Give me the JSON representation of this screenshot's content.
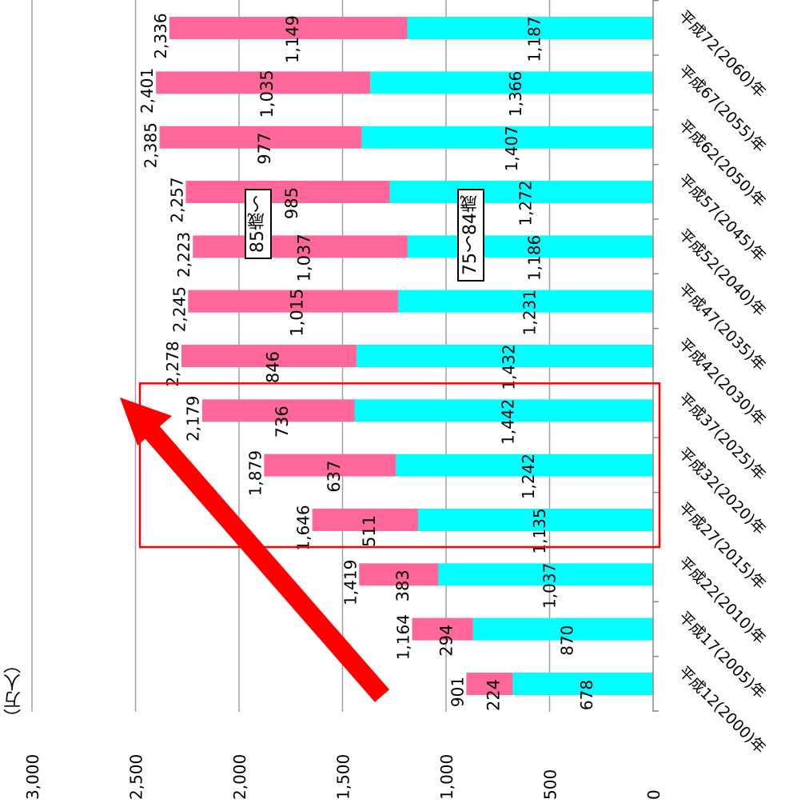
{
  "chart_data": {
    "type": "bar",
    "stacked": true,
    "orientation": "horizontal",
    "unit_label": "（万人）",
    "categories": [
      "平成12(2000)年",
      "平成17(2005)年",
      "平成22(2010)年",
      "平成27(2015)年",
      "平成32(2020)年",
      "平成37(2025)年",
      "平成42(2030)年",
      "平成47(2035)年",
      "平成52(2040)年",
      "平成57(2045)年",
      "平成62(2050)年",
      "平成67(2055)年",
      "平成72(2060)年"
    ],
    "series": [
      {
        "name": "75～84歳",
        "color": "#00FFFF",
        "values": [
          678,
          870,
          1037,
          1135,
          1242,
          1442,
          1432,
          1231,
          1186,
          1272,
          1407,
          1366,
          1187
        ],
        "labels": [
          "678",
          "870",
          "1,037",
          "1,135",
          "1,242",
          "1,442",
          "1,432",
          "1,231",
          "1,186",
          "1,272",
          "1,407",
          "1,366",
          "1,187"
        ]
      },
      {
        "name": "85歳～",
        "color": "#FF6699",
        "values": [
          224,
          294,
          383,
          511,
          637,
          736,
          846,
          1015,
          1037,
          985,
          977,
          1035,
          1149
        ],
        "labels": [
          "224",
          "294",
          "383",
          "511",
          "637",
          "736",
          "846",
          "1,015",
          "1,037",
          "985",
          "977",
          "1,035",
          "1,149"
        ]
      }
    ],
    "totals": [
      901,
      1164,
      1419,
      1646,
      1879,
      2179,
      2278,
      2245,
      2223,
      2257,
      2385,
      2401,
      2336
    ],
    "total_labels": [
      "901",
      "1,164",
      "1,419",
      "1,646",
      "1,879",
      "2,179",
      "2,278",
      "2,245",
      "2,223",
      "2,257",
      "2,385",
      "2,401",
      "2,336"
    ],
    "value_axis": {
      "min": 0,
      "max": 3000,
      "step": 500,
      "tick_labels": [
        "0",
        "500",
        "1,000",
        "1,500",
        "2,000",
        "2,500",
        "3,000"
      ]
    },
    "grid": true,
    "highlight": {
      "categories": [
        "平成27(2015)年",
        "平成32(2020)年",
        "平成37(2025)年"
      ],
      "color": "#FF0000"
    },
    "arrow": {
      "color": "#FF0000"
    }
  }
}
